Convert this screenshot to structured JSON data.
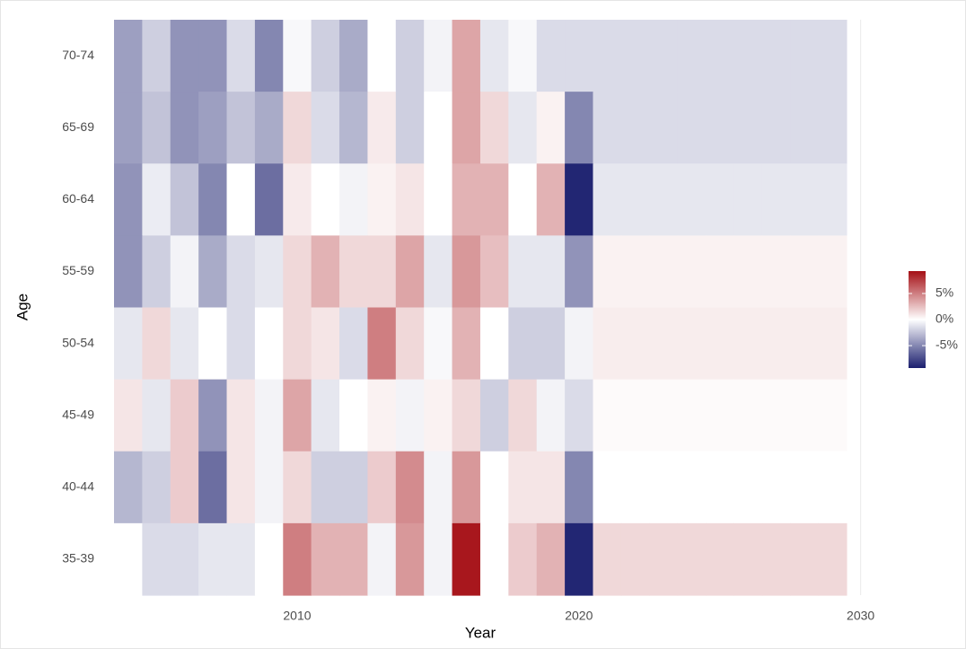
{
  "chart_data": {
    "type": "heatmap",
    "x_label": "Year",
    "y_label": "Age",
    "x": [
      2004,
      2005,
      2006,
      2007,
      2008,
      2009,
      2010,
      2011,
      2012,
      2013,
      2014,
      2015,
      2016,
      2017,
      2018,
      2019,
      2020,
      2021,
      2022,
      2023,
      2024,
      2025,
      2026,
      2027,
      2028,
      2029
    ],
    "series": [
      {
        "name": "70-74",
        "values": [
          -4,
          -2,
          -4.5,
          -4.5,
          -1.5,
          -5,
          -0.3,
          -2,
          -3.5,
          0,
          -2,
          -0.5,
          3.5,
          -1,
          -0.3,
          -1.5,
          -1.5,
          -1.5,
          -1.5,
          -1.5,
          -1.5,
          -1.5,
          -1.5,
          -1.5,
          -1.5,
          -1.5
        ]
      },
      {
        "name": "65-69",
        "values": [
          -4,
          -2.5,
          -4.5,
          -4,
          -2.5,
          -3.5,
          1.5,
          -1.5,
          -3,
          0.8,
          -2,
          0,
          3.5,
          1.5,
          -1,
          0.5,
          -5,
          -1.5,
          -1.5,
          -1.5,
          -1.5,
          -1.5,
          -1.5,
          -1.5,
          -1.5,
          -1.5
        ]
      },
      {
        "name": "60-64",
        "values": [
          -4.5,
          -0.8,
          -2.5,
          -5,
          0,
          -6,
          0.8,
          0,
          -0.5,
          0.5,
          1,
          0,
          3,
          3,
          0,
          3,
          -9,
          -1,
          -1,
          -1,
          -1,
          -1,
          -1,
          -1,
          -1,
          -1
        ]
      },
      {
        "name": "55-59",
        "values": [
          -4.5,
          -2,
          -0.5,
          -3.5,
          -1.5,
          -1,
          1.5,
          3,
          1.5,
          1.5,
          3.5,
          -1,
          4,
          2.5,
          -1,
          -1,
          -4.5,
          0.5,
          0.5,
          0.5,
          0.5,
          0.5,
          0.5,
          0.5,
          0.5,
          0.5
        ]
      },
      {
        "name": "50-54",
        "values": [
          -1,
          1.5,
          -1,
          0,
          -1.5,
          0,
          1.5,
          1,
          -1.5,
          5,
          1.5,
          -0.3,
          3,
          0,
          -2,
          -2,
          -0.5,
          0.7,
          0.7,
          0.7,
          0.7,
          0.7,
          0.7,
          0.7,
          0.7,
          0.7
        ]
      },
      {
        "name": "45-49",
        "values": [
          1,
          -1,
          2,
          -4.5,
          1,
          -0.5,
          3.5,
          -1,
          0,
          0.5,
          -0.5,
          0.5,
          1.5,
          -2,
          1.5,
          -0.5,
          -1.5,
          0.2,
          0.2,
          0.2,
          0.2,
          0.2,
          0.2,
          0.2,
          0.2,
          0.2
        ]
      },
      {
        "name": "40-44",
        "values": [
          -3,
          -2,
          2,
          -6,
          1,
          -0.5,
          1.5,
          -2,
          -2,
          2,
          4.5,
          -0.5,
          4,
          0,
          1,
          1,
          -5,
          0,
          0,
          0,
          0,
          0,
          0,
          0,
          0,
          0
        ]
      },
      {
        "name": "35-39",
        "values": [
          0,
          -1.5,
          -1.5,
          -1,
          -1,
          0,
          5,
          3,
          3,
          -0.5,
          4,
          -0.5,
          9,
          0,
          2,
          3,
          -9,
          1.5,
          1.5,
          1.5,
          1.5,
          1.5,
          1.5,
          1.5,
          1.5,
          1.5
        ]
      }
    ],
    "xlim": [
      2003.5,
      2031
    ],
    "xticks": [
      2010,
      2020,
      2030
    ],
    "colorscale": {
      "low": "#1b1f6e",
      "mid": "#ffffff",
      "high": "#a50f15"
    },
    "colorbar_lim": [
      -9.3,
      9.3
    ],
    "colorbar_ticks": [
      {
        "value": 5,
        "label": "5%"
      },
      {
        "value": 0,
        "label": "0%"
      },
      {
        "value": -5,
        "label": "-5%"
      }
    ]
  }
}
